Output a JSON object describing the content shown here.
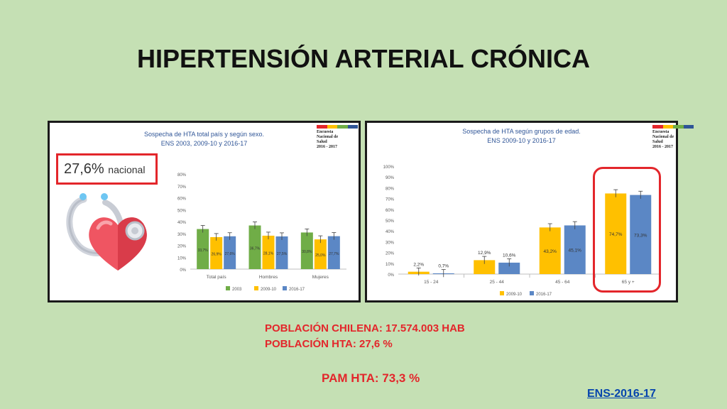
{
  "slide": {
    "title": "HIPERTENSIÓN ARTERIAL CRÓNICA",
    "info_lines": [
      "POBLACIÓN CHILENA: 17.574.003 HAB",
      "POBLACIÓN HTA: 27,6 %",
      "PAM HTA: 73,3 %"
    ],
    "source_link": "ENS-2016-17"
  },
  "panel_left": {
    "title_line1": "Sospecha de HTA total país y según sexo.",
    "title_line2": "ENS 2003, 2009-10 y 2016-17",
    "logo_lines": [
      "Encuesta",
      "Nacional de",
      "Salud",
      "2016 - 2017"
    ],
    "national_value": "27,6%",
    "national_label": "nacional",
    "illustration_icon": "heart-stethoscope-icon"
  },
  "panel_right": {
    "title_line1": "Sospecha de HTA según grupos de edad.",
    "title_line2": "ENS 2009-10 y 2016-17",
    "logo_lines": [
      "Encuesta",
      "Nacional de",
      "Salud",
      "2016 - 2017"
    ]
  },
  "colors": {
    "c2003": "#70ad47",
    "c2009": "#ffc000",
    "c2016": "#5b87c5",
    "accent_red": "#e3262b"
  },
  "chart_data": [
    {
      "type": "bar",
      "categories": [
        "Total país",
        "Hombres",
        "Mujeres"
      ],
      "series": [
        {
          "name": "2003",
          "values": [
            33.7,
            36.7,
            30.8
          ],
          "labels": [
            "33,7%",
            "36,7%",
            "30,8%"
          ]
        },
        {
          "name": "2009-10",
          "values": [
            26.9,
            28.1,
            25.0
          ],
          "labels": [
            "26,9%",
            "28,1%",
            "25,0%"
          ]
        },
        {
          "name": "2016-17",
          "values": [
            27.6,
            27.5,
            27.7
          ],
          "labels": [
            "27,6%",
            "27,5%",
            "27,7%"
          ]
        }
      ],
      "error_bars": true,
      "ylim": [
        0,
        80
      ],
      "yticks": [
        "0%",
        "10%",
        "20%",
        "30%",
        "40%",
        "50%",
        "60%",
        "70%",
        "80%"
      ],
      "legend_position": "bottom"
    },
    {
      "type": "bar",
      "categories": [
        "15 - 24",
        "25 - 44",
        "45 - 64",
        "65 y +"
      ],
      "series": [
        {
          "name": "2009-10",
          "values": [
            2.2,
            12.9,
            43.2,
            74.7
          ],
          "labels": [
            "2,2%",
            "12,9%",
            "43,2%",
            "74,7%"
          ]
        },
        {
          "name": "2016-17",
          "values": [
            0.7,
            10.6,
            45.1,
            73.3
          ],
          "labels": [
            "0,7%",
            "10,6%",
            "45,1%",
            "73,3%"
          ]
        }
      ],
      "error_bars": true,
      "ylim": [
        0,
        100
      ],
      "yticks": [
        "0%",
        "10%",
        "20%",
        "30%",
        "40%",
        "50%",
        "60%",
        "70%",
        "80%",
        "90%",
        "100%"
      ],
      "legend_position": "bottom",
      "highlighted_category": "65 y +"
    }
  ]
}
